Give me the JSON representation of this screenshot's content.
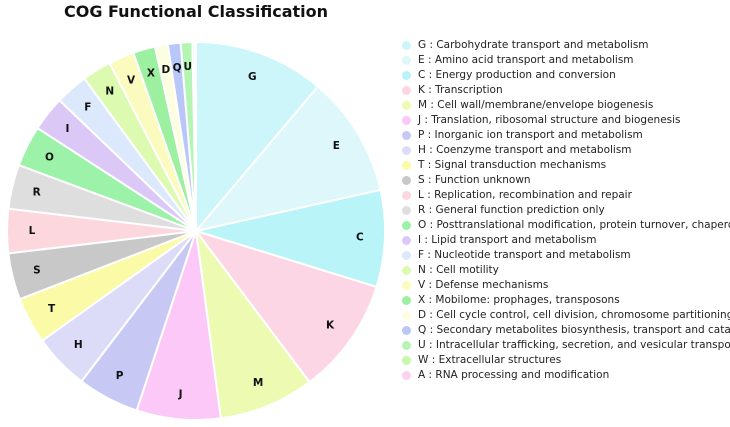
{
  "chart_data": {
    "type": "pie",
    "title": "COG Functional Classification",
    "legend_position": "right",
    "slices": [
      {
        "code": "G",
        "label": "G : Carbohydrate transport and metabolism",
        "value": 11.2,
        "color": "#ccf6fa"
      },
      {
        "code": "E",
        "label": "E : Amino acid transport and metabolism",
        "value": 10.4,
        "color": "#ddf7fa"
      },
      {
        "code": "C",
        "label": "C : Energy production and conversion",
        "value": 8.3,
        "color": "#b9f4f8"
      },
      {
        "code": "K",
        "label": "K : Transcription",
        "value": 10.0,
        "color": "#fdd6e6"
      },
      {
        "code": "M",
        "label": "M : Cell wall/membrane/envelope biogenesis",
        "value": 8.2,
        "color": "#edfab2"
      },
      {
        "code": "J",
        "label": "J : Translation, ribosomal structure and biogenesis",
        "value": 7.2,
        "color": "#fbc8f8"
      },
      {
        "code": "P",
        "label": "P : Inorganic ion transport and metabolism",
        "value": 5.3,
        "color": "#c8c8f5"
      },
      {
        "code": "H",
        "label": "H : Coenzyme transport and metabolism",
        "value": 4.8,
        "color": "#dcdcf8"
      },
      {
        "code": "T",
        "label": "T : Signal transduction mechanisms",
        "value": 4.0,
        "color": "#fbfaa6"
      },
      {
        "code": "S",
        "label": "S : Function unknown",
        "value": 4.0,
        "color": "#c8c8c8"
      },
      {
        "code": "L",
        "label": "L : Replication, recombination and repair",
        "value": 3.8,
        "color": "#fcd8de"
      },
      {
        "code": "R",
        "label": "R : General function prediction only",
        "value": 3.8,
        "color": "#dedede"
      },
      {
        "code": "O",
        "label": "O : Posttranslational modification, protein turnover, chaperones",
        "value": 3.5,
        "color": "#9cf2a8"
      },
      {
        "code": "I",
        "label": "I : Lipid transport and metabolism",
        "value": 3.0,
        "color": "#dbc8f7"
      },
      {
        "code": "F",
        "label": "F : Nucleotide transport and metabolism",
        "value": 2.8,
        "color": "#dce8fb"
      },
      {
        "code": "N",
        "label": "N : Cell motility",
        "value": 2.5,
        "color": "#dcfab0"
      },
      {
        "code": "V",
        "label": "V : Defense mechanisms",
        "value": 2.2,
        "color": "#fbfbbf"
      },
      {
        "code": "X",
        "label": "X : Mobilome: prophages, transposons",
        "value": 1.9,
        "color": "#9cf0a0"
      },
      {
        "code": "D",
        "label": "D : Cell cycle control, cell division, chromosome partitioning",
        "value": 1.1,
        "color": "#fdfde0"
      },
      {
        "code": "Q",
        "label": "Q : Secondary metabolites biosynthesis, transport and catabolism",
        "value": 1.1,
        "color": "#b9c6f8"
      },
      {
        "code": "U",
        "label": "U : Intracellular trafficking, secretion, and vesicular transport",
        "value": 1.0,
        "color": "#b4f5b4"
      },
      {
        "code": "W",
        "label": "W : Extracellular structures",
        "value": 0.2,
        "color": "#c6f8a8"
      },
      {
        "code": "A",
        "label": "A : RNA processing and modification",
        "value": 0.1,
        "color": "#fcd0ee"
      }
    ],
    "hidden_labels": [
      "W",
      "A"
    ]
  }
}
